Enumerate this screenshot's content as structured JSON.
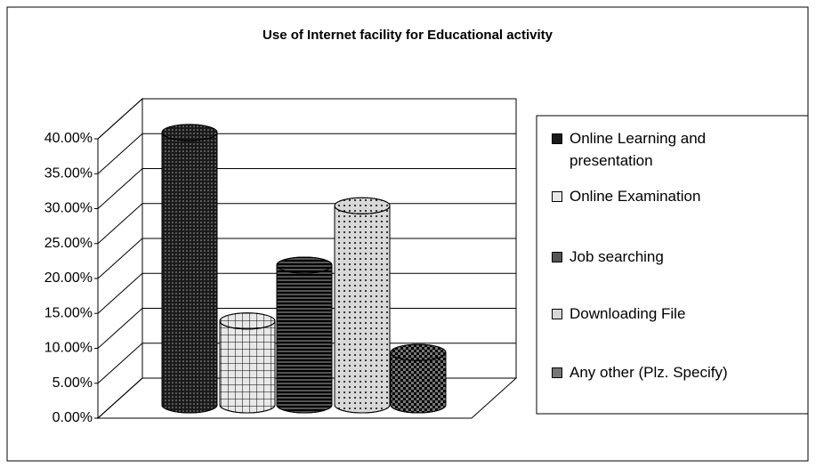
{
  "chart_data": {
    "type": "bar3d",
    "title": "Use of Internet facility for Educational activity",
    "series": [
      {
        "name": "Online Learning and presentation",
        "color": "#1a1a1a",
        "values": [
          39
        ]
      },
      {
        "name": "Online Examination",
        "color": "#e8e8e8",
        "values": [
          12
        ]
      },
      {
        "name": "Job searching",
        "color": "#555555",
        "values": [
          20
        ]
      },
      {
        "name": "Downloading File",
        "color": "#d8d8d8",
        "values": [
          28.5
        ]
      },
      {
        "name": "Any other (Plz. Specify)",
        "color": "#777777",
        "values": [
          7.5
        ]
      }
    ],
    "ylim": [
      0,
      40
    ],
    "yticks": [
      {
        "value": 0,
        "label": "0.00%"
      },
      {
        "value": 5,
        "label": "5.00%"
      },
      {
        "value": 10,
        "label": "10.00%"
      },
      {
        "value": 15,
        "label": "15.00%"
      },
      {
        "value": 20,
        "label": "20.00%"
      },
      {
        "value": 25,
        "label": "25.00%"
      },
      {
        "value": 30,
        "label": "30.00%"
      },
      {
        "value": 35,
        "label": "35.00%"
      },
      {
        "value": 40,
        "label": "40.00%"
      }
    ],
    "grid": true,
    "legend": "right"
  }
}
